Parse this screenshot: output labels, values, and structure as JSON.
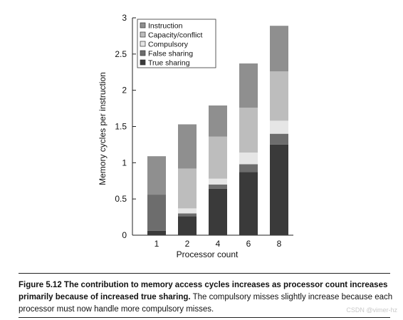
{
  "chart_data": {
    "type": "bar",
    "stacked": true,
    "categories": [
      "1",
      "2",
      "4",
      "6",
      "8"
    ],
    "series": [
      {
        "name": "True sharing",
        "color": "#3a3a3a",
        "values": [
          0.06,
          0.26,
          0.64,
          0.87,
          1.25
        ]
      },
      {
        "name": "False sharing",
        "color": "#6d6d6d",
        "values": [
          0.5,
          0.04,
          0.06,
          0.11,
          0.15
        ]
      },
      {
        "name": "Compulsory",
        "color": "#e6e6e6",
        "values": [
          0.0,
          0.07,
          0.08,
          0.16,
          0.18
        ]
      },
      {
        "name": "Capacity/conflict",
        "color": "#bdbdbd",
        "values": [
          0.0,
          0.55,
          0.58,
          0.62,
          0.68
        ]
      },
      {
        "name": "Instruction",
        "color": "#8f8f8f",
        "values": [
          0.53,
          0.61,
          0.43,
          0.61,
          0.63
        ]
      }
    ],
    "legend_order": [
      "Instruction",
      "Capacity/conflict",
      "Compulsory",
      "False sharing",
      "True sharing"
    ],
    "legend_position": "top-left",
    "xlabel": "Processor count",
    "ylabel": "Memory cycles per instruction",
    "ylim": [
      0,
      3
    ],
    "yticks": [
      "0",
      "0.5",
      "1",
      "1.5",
      "2",
      "2.5",
      "3"
    ],
    "grid": false
  },
  "caption": {
    "label": "Figure 5.12",
    "bold_text": "The contribution to memory access cycles increases as processor count increases primarily because of increased true sharing.",
    "text": "The compulsory misses slightly increase because each processor must now handle more compulsory misses."
  },
  "watermark": "CSDN @vimer-hz"
}
